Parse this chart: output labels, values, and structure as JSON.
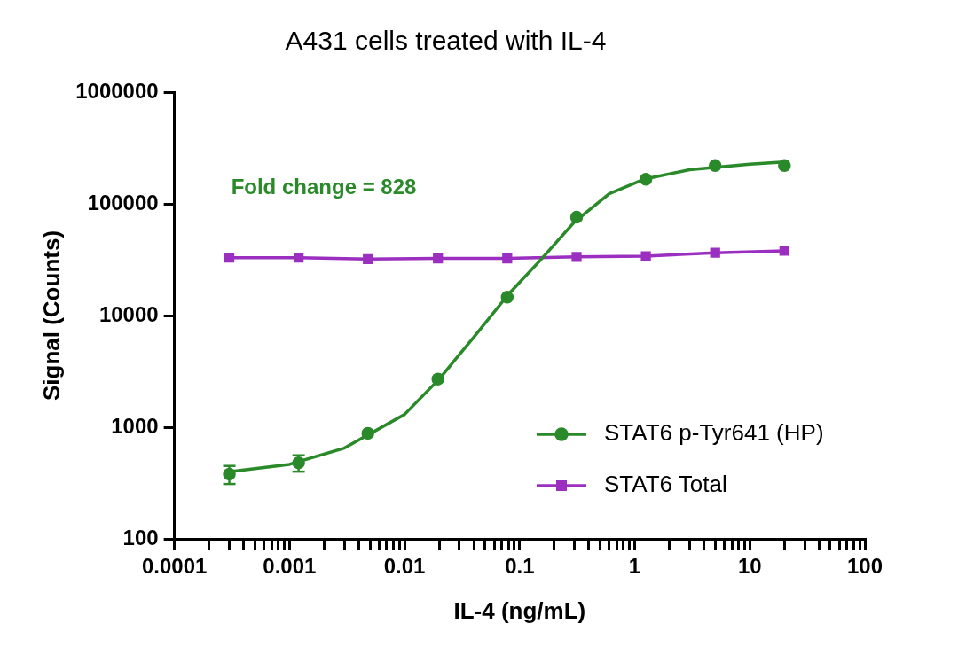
{
  "chart_data": {
    "type": "scatter",
    "title": "A431 cells treated with IL-4",
    "xlabel": "IL-4 (ng/mL)",
    "ylabel": "Signal (Counts)",
    "log": "xy",
    "grid": false,
    "legend": "bottom right",
    "xlim": [
      0.0001,
      100
    ],
    "ylim": [
      100,
      1000000
    ],
    "xticks": [
      0.0001,
      {
        "value": 0.0002,
        "label": null
      },
      {
        "value": 0.0003,
        "label": null
      },
      {
        "value": 0.0004,
        "label": null
      },
      {
        "value": 0.0005,
        "label": null
      },
      {
        "value": 0.0006,
        "label": null
      },
      {
        "value": 0.0007,
        "label": null
      },
      {
        "value": 0.0008,
        "label": null
      },
      {
        "value": 0.0009,
        "label": null
      },
      0.001,
      {
        "value": 0.002,
        "label": null
      },
      {
        "value": 0.003,
        "label": null
      },
      {
        "value": 0.004,
        "label": null
      },
      {
        "value": 0.005,
        "label": null
      },
      {
        "value": 0.006,
        "label": null
      },
      {
        "value": 0.007,
        "label": null
      },
      {
        "value": 0.008,
        "label": null
      },
      {
        "value": 0.009,
        "label": null
      },
      0.01,
      {
        "value": 0.02,
        "label": null
      },
      {
        "value": 0.03,
        "label": null
      },
      {
        "value": 0.04,
        "label": null
      },
      {
        "value": 0.05,
        "label": null
      },
      {
        "value": 0.06,
        "label": null
      },
      {
        "value": 0.07,
        "label": null
      },
      {
        "value": 0.08,
        "label": null
      },
      {
        "value": 0.09,
        "label": null
      },
      0.1,
      {
        "value": 0.2,
        "label": null
      },
      {
        "value": 0.3,
        "label": null
      },
      {
        "value": 0.4,
        "label": null
      },
      {
        "value": 0.5,
        "label": null
      },
      {
        "value": 0.6,
        "label": null
      },
      {
        "value": 0.7,
        "label": null
      },
      {
        "value": 0.8,
        "label": null
      },
      {
        "value": 0.9,
        "label": null
      },
      1,
      {
        "value": 2,
        "label": null
      },
      {
        "value": 3,
        "label": null
      },
      {
        "value": 4,
        "label": null
      },
      {
        "value": 5,
        "label": null
      },
      {
        "value": 6,
        "label": null
      },
      {
        "value": 7,
        "label": null
      },
      {
        "value": 8,
        "label": null
      },
      {
        "value": 9,
        "label": null
      },
      10,
      {
        "value": 20,
        "label": null
      },
      {
        "value": 30,
        "label": null
      },
      {
        "value": 40,
        "label": null
      },
      {
        "value": 50,
        "label": null
      },
      {
        "value": 60,
        "label": null
      },
      {
        "value": 70,
        "label": null
      },
      {
        "value": 80,
        "label": null
      },
      {
        "value": 90,
        "label": null
      },
      100
    ],
    "yticks": [
      100,
      1000,
      10000,
      100000,
      1000000
    ],
    "annotations": [
      "Fold change = 828"
    ],
    "series": [
      {
        "name": "STAT6 p-Tyr641 (HP)",
        "marker": "circle",
        "color": "#2a8a2a",
        "x": [
          0.0003,
          0.0012,
          0.0048,
          0.0195,
          0.078,
          0.3125,
          1.25,
          5,
          20
        ],
        "values": [
          380,
          480,
          880,
          2700,
          14600,
          76000,
          166000,
          220000,
          220000
        ],
        "errors": [
          70,
          80,
          null,
          null,
          null,
          null,
          null,
          null,
          null
        ]
      },
      {
        "type": "line",
        "marker": "none",
        "color": "#2a8a2a",
        "x": [
          0.0003,
          0.001,
          0.003,
          0.01,
          0.02,
          0.04,
          0.08,
          0.15,
          0.3,
          0.6,
          1.2,
          3,
          10,
          20
        ],
        "values": [
          400,
          465,
          650,
          1300,
          2700,
          6400,
          15500,
          31000,
          69000,
          123000,
          166000,
          202000,
          227000,
          237000
        ]
      },
      {
        "name": "STAT6 Total",
        "type": "line",
        "marker": "square",
        "color": "#9b2fc0",
        "x": [
          0.0003,
          0.0012,
          0.0048,
          0.0195,
          0.078,
          0.3125,
          1.25,
          5,
          20
        ],
        "values": [
          33000,
          33000,
          32000,
          32500,
          32500,
          33500,
          34000,
          36500,
          38000
        ]
      }
    ]
  }
}
